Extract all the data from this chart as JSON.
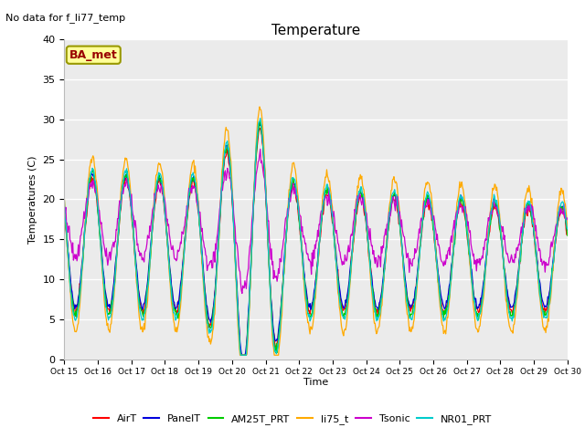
{
  "title": "Temperature",
  "ylabel": "Temperatures (C)",
  "xlabel": "Time",
  "ylim": [
    0,
    40
  ],
  "annotation_text": "No data for f_li77_temp",
  "ba_met_label": "BA_met",
  "series_colors": {
    "AirT": "#ff0000",
    "PanelT": "#0000dd",
    "AM25T_PRT": "#00cc00",
    "li75_t": "#ffaa00",
    "Tsonic": "#cc00cc",
    "NR01_PRT": "#00cccc"
  },
  "x_tick_labels": [
    "Oct 15",
    "Oct 16",
    "Oct 17",
    "Oct 18",
    "Oct 19",
    "Oct 20",
    "Oct 21",
    "Oct 22",
    "Oct 23",
    "Oct 24",
    "Oct 25",
    "Oct 26",
    "Oct 27",
    "Oct 28",
    "Oct 29",
    "Oct 30"
  ],
  "plot_bg_color": "#ebebeb",
  "fig_bg_color": "#ffffff",
  "grid_color": "#ffffff",
  "yticks": [
    0,
    5,
    10,
    15,
    20,
    25,
    30,
    35,
    40
  ]
}
